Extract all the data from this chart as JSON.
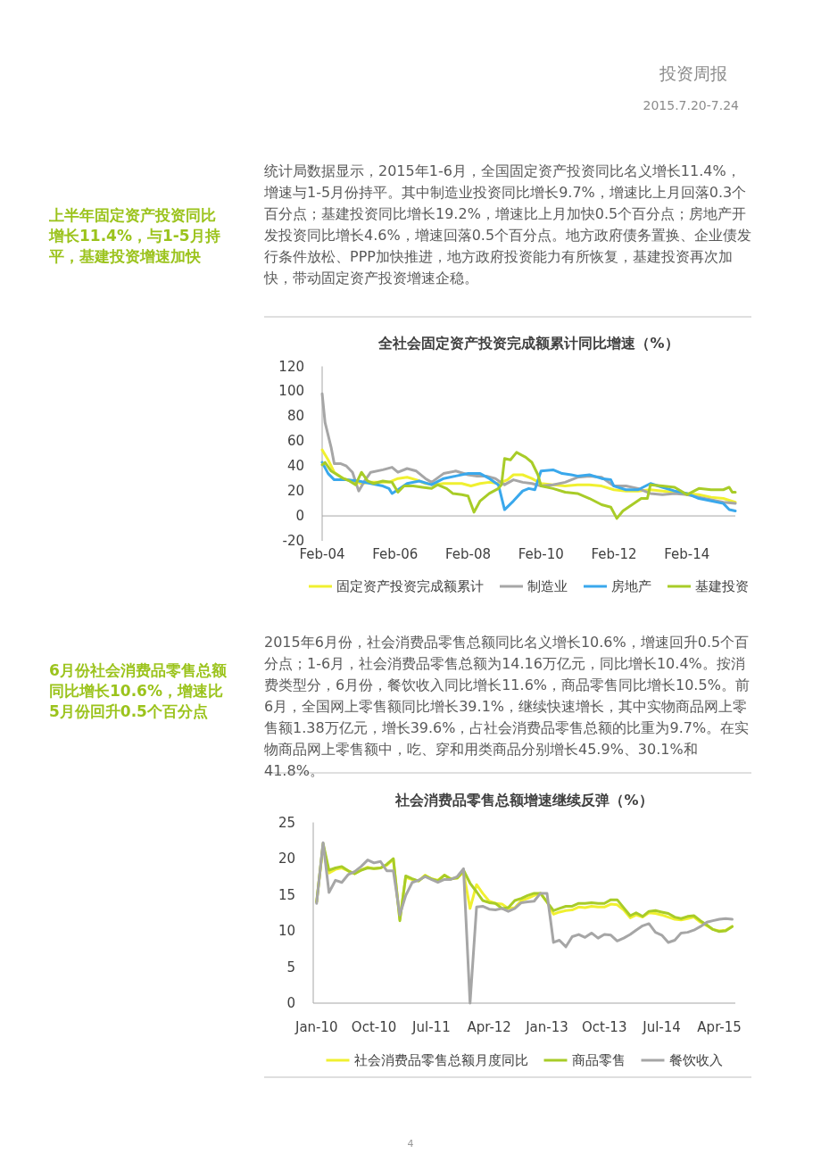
{
  "chart_data": [
    {
      "type": "line",
      "title": "全社会固定资产投资完成额累计同比增速（%）",
      "annotations": [
        "投资周报",
        "2015.7.20-7.24",
        "上半年固定资产投资同比增长11.4%，与1-5月持平，基建投资增速加快",
        "统计局数据显示，2015年1-6月，全国固定资产投资同比名义增长11.4%，增速与1-5月份持平。其中制造业投资同比增长9.7%，增速比上月回落0.3个百分点；基建投资同比增长19.2%，增速比上月加快0.5个百分点；房地产开发投资同比增长4.6%，增速回落0.5个百分点。地方政府债务置换、企业债发行条件放松、PPP加快推进，地方政府投资能力有所恢复，基建投资再次加快，带动固定资产投资增速企稳。"
      ],
      "xlim": [
        "2004-02",
        "2015-06"
      ],
      "xticks": [
        {
          "value": "2004-02",
          "label": "Feb-04"
        },
        {
          "value": "2006-02",
          "label": "Feb-06"
        },
        {
          "value": "2008-02",
          "label": "Feb-08"
        },
        {
          "value": "2010-02",
          "label": "Feb-10"
        },
        {
          "value": "2012-02",
          "label": "Feb-12"
        },
        {
          "value": "2014-02",
          "label": "Feb-14"
        }
      ],
      "ylim": [
        -20,
        120
      ],
      "yticks": [
        -20,
        0,
        20,
        40,
        60,
        80,
        100,
        120
      ],
      "legend": "bottom",
      "series": [
        {
          "name": "固定资产投资完成额累计",
          "color": "#f0f030",
          "x": [
            "2004-02",
            "2004-04",
            "2004-06",
            "2004-09",
            "2004-12",
            "2005-03",
            "2005-06",
            "2005-09",
            "2005-12",
            "2006-03",
            "2006-06",
            "2006-09",
            "2006-12",
            "2007-03",
            "2007-06",
            "2007-09",
            "2007-12",
            "2008-03",
            "2008-06",
            "2008-09",
            "2008-12",
            "2009-03",
            "2009-05",
            "2009-08",
            "2009-11",
            "2010-02",
            "2010-06",
            "2010-10",
            "2011-02",
            "2011-06",
            "2011-10",
            "2012-02",
            "2012-06",
            "2012-10",
            "2013-02",
            "2013-06",
            "2013-10",
            "2014-02",
            "2014-06",
            "2014-10",
            "2015-02",
            "2015-06"
          ],
          "values": [
            53,
            45,
            35,
            30,
            28,
            26,
            27,
            27,
            27,
            30,
            31,
            29,
            26,
            25,
            26,
            26,
            26,
            24,
            26,
            27,
            26,
            29,
            33,
            33,
            30,
            26,
            25,
            24,
            25,
            25,
            24,
            21,
            20,
            20,
            21,
            20,
            19,
            18,
            17,
            15,
            14,
            11
          ]
        },
        {
          "name": "制造业",
          "color": "#a6a6a6",
          "x": [
            "2004-02",
            "2004-03",
            "2004-05",
            "2004-06",
            "2004-08",
            "2004-10",
            "2004-12",
            "2005-02",
            "2005-04",
            "2005-06",
            "2005-10",
            "2006-01",
            "2006-03",
            "2006-06",
            "2006-09",
            "2006-12",
            "2007-02",
            "2007-06",
            "2007-10",
            "2008-02",
            "2008-05",
            "2008-08",
            "2008-11",
            "2009-02",
            "2009-05",
            "2009-08",
            "2009-11",
            "2010-02",
            "2010-06",
            "2010-10",
            "2011-02",
            "2011-06",
            "2011-10",
            "2012-02",
            "2012-06",
            "2012-10",
            "2013-02",
            "2013-06",
            "2013-10",
            "2014-02",
            "2014-06",
            "2014-10",
            "2015-02",
            "2015-06"
          ],
          "values": [
            98,
            75,
            55,
            42,
            42,
            40,
            35,
            20,
            28,
            35,
            37,
            39,
            35,
            38,
            36,
            30,
            27,
            34,
            36,
            33,
            32,
            32,
            30,
            25,
            29,
            27,
            26,
            24,
            25,
            27,
            31,
            32,
            31,
            24,
            24,
            22,
            18,
            17,
            18,
            17,
            15,
            13,
            11,
            10
          ]
        },
        {
          "name": "房地产",
          "color": "#3aa8ec",
          "x": [
            "2004-02",
            "2004-04",
            "2004-06",
            "2004-10",
            "2005-02",
            "2005-06",
            "2005-10",
            "2005-12",
            "2006-01",
            "2006-03",
            "2006-06",
            "2006-10",
            "2007-02",
            "2007-06",
            "2007-10",
            "2008-02",
            "2008-06",
            "2008-09",
            "2008-12",
            "2009-02",
            "2009-05",
            "2009-08",
            "2009-10",
            "2009-12",
            "2010-02",
            "2010-06",
            "2010-09",
            "2010-12",
            "2011-02",
            "2011-06",
            "2011-10",
            "2012-01",
            "2012-02",
            "2012-06",
            "2012-10",
            "2013-02",
            "2013-06",
            "2013-10",
            "2014-02",
            "2014-06",
            "2014-10",
            "2015-02",
            "2015-04",
            "2015-06"
          ],
          "values": [
            43,
            34,
            29,
            29,
            28,
            26,
            24,
            22,
            18,
            21,
            26,
            28,
            25,
            30,
            32,
            34,
            34,
            30,
            25,
            5,
            12,
            20,
            22,
            21,
            36,
            37,
            34,
            33,
            32,
            33,
            30,
            29,
            24,
            21,
            21,
            26,
            23,
            20,
            18,
            14,
            12,
            10,
            5,
            4
          ]
        },
        {
          "name": "基建投资",
          "color": "#a8cc28",
          "x": [
            "2004-02",
            "2004-03",
            "2004-05",
            "2004-07",
            "2004-09",
            "2004-11",
            "2005-01",
            "2005-03",
            "2005-05",
            "2005-07",
            "2005-10",
            "2006-01",
            "2006-03",
            "2006-05",
            "2006-08",
            "2006-11",
            "2007-02",
            "2007-04",
            "2007-07",
            "2007-09",
            "2007-12",
            "2008-02",
            "2008-04",
            "2008-06",
            "2008-09",
            "2008-12",
            "2009-01",
            "2009-02",
            "2009-04",
            "2009-06",
            "2009-09",
            "2009-11",
            "2010-01",
            "2010-02",
            "2010-06",
            "2010-10",
            "2011-02",
            "2011-06",
            "2011-10",
            "2012-01",
            "2012-03",
            "2012-05",
            "2012-08",
            "2012-11",
            "2013-01",
            "2013-02",
            "2013-06",
            "2013-10",
            "2014-02",
            "2014-06",
            "2014-10",
            "2015-02",
            "2015-04",
            "2015-05",
            "2015-06"
          ],
          "values": [
            41,
            43,
            36,
            33,
            30,
            28,
            25,
            35,
            28,
            26,
            28,
            27,
            19,
            24,
            24,
            23,
            22,
            25,
            22,
            18,
            17,
            16,
            3,
            12,
            18,
            22,
            25,
            46,
            45,
            51,
            47,
            43,
            33,
            24,
            22,
            19,
            18,
            14,
            9,
            7,
            -2,
            4,
            9,
            14,
            14,
            25,
            24,
            23,
            17,
            22,
            21,
            21,
            23,
            19,
            19
          ]
        }
      ]
    },
    {
      "type": "line",
      "title": "社会消费品零售总额增速继续反弹（%）",
      "annotations": [
        "6月份社会消费品零售总额同比增长10.6%，增速比5月份回升0.5个百分点",
        "2015年6月份，社会消费品零售总额同比名义增长10.6%，增速回升0.5个百分点；1-6月，社会消费品零售总额为14.16万亿元，同比增长10.4%。按消费类型分，6月份，餐饮收入同比增长11.6%，商品零售同比增长10.5%。前6月，全国网上零售额同比增长39.1%，继续快速增长，其中实物商品网上零售额1.38万亿元，增长39.6%，占社会消费品零售总额的比重为9.7%。在实物商品网上零售额中，吃、穿和用类商品分别增长45.9%、30.1%和41.8%。",
        "4"
      ],
      "x": [
        "2010-01",
        "2010-02",
        "2010-03",
        "2010-04",
        "2010-05",
        "2010-06",
        "2010-07",
        "2010-08",
        "2010-09",
        "2010-10",
        "2010-11",
        "2010-12",
        "2011-01",
        "2011-02",
        "2011-03",
        "2011-04",
        "2011-05",
        "2011-06",
        "2011-07",
        "2011-08",
        "2011-09",
        "2011-10",
        "2011-11",
        "2011-12",
        "2012-01",
        "2012-02",
        "2012-03",
        "2012-04",
        "2012-05",
        "2012-06",
        "2012-07",
        "2012-08",
        "2012-09",
        "2012-10",
        "2012-11",
        "2012-12",
        "2013-01",
        "2013-02",
        "2013-03",
        "2013-04",
        "2013-05",
        "2013-06",
        "2013-07",
        "2013-08",
        "2013-09",
        "2013-10",
        "2013-11",
        "2013-12",
        "2014-01",
        "2014-02",
        "2014-03",
        "2014-04",
        "2014-05",
        "2014-06",
        "2014-07",
        "2014-08",
        "2014-09",
        "2014-10",
        "2014-11",
        "2014-12",
        "2015-01",
        "2015-02",
        "2015-03",
        "2015-04",
        "2015-05",
        "2015-06"
      ],
      "xlim": [
        "2009-12-16",
        "2015-06-16"
      ],
      "xticks": [
        {
          "value": "2010-01",
          "label": "Jan-10"
        },
        {
          "value": "2010-10",
          "label": "Oct-10"
        },
        {
          "value": "2011-07",
          "label": "Jul-11"
        },
        {
          "value": "2012-04",
          "label": "Apr-12"
        },
        {
          "value": "2013-01",
          "label": "Jan-13"
        },
        {
          "value": "2013-10",
          "label": "Oct-13"
        },
        {
          "value": "2014-07",
          "label": "Jul-14"
        },
        {
          "value": "2015-04",
          "label": "Apr-15"
        }
      ],
      "ylim": [
        0,
        25
      ],
      "yticks": [
        0,
        5,
        10,
        15,
        20,
        25
      ],
      "legend": "bottom",
      "series": [
        {
          "name": "社会消费品零售总额月度同比",
          "color": "#f0f030",
          "values": [
            14.0,
            21.8,
            18.0,
            18.5,
            18.7,
            18.3,
            17.9,
            18.4,
            18.8,
            18.6,
            18.7,
            19.1,
            19.9,
            11.6,
            17.4,
            17.1,
            16.9,
            17.7,
            17.2,
            17.0,
            17.7,
            17.2,
            17.3,
            18.1,
            13.1,
            16.4,
            15.2,
            14.1,
            13.8,
            13.7,
            13.1,
            13.2,
            14.2,
            14.5,
            14.9,
            15.2,
            14.0,
            12.3,
            12.6,
            12.8,
            12.9,
            13.3,
            13.2,
            13.4,
            13.3,
            13.3,
            13.7,
            13.6,
            12.9,
            11.8,
            12.2,
            11.9,
            12.5,
            12.4,
            12.2,
            11.9,
            11.6,
            11.5,
            11.7,
            11.9,
            11.2,
            10.7,
            10.2,
            10.0,
            10.1,
            10.6
          ]
        },
        {
          "name": "商品零售",
          "color": "#a8cc28",
          "values": [
            14.0,
            22.1,
            18.4,
            18.7,
            18.9,
            18.3,
            17.9,
            18.4,
            18.7,
            18.6,
            18.7,
            19.2,
            20.0,
            11.4,
            17.6,
            17.2,
            16.9,
            17.6,
            17.2,
            16.9,
            17.7,
            17.2,
            17.3,
            18.4,
            16.6,
            15.4,
            14.2,
            13.9,
            13.8,
            13.1,
            13.2,
            14.2,
            14.5,
            14.9,
            15.2,
            15.2,
            14.0,
            12.8,
            13.1,
            13.4,
            13.4,
            13.8,
            13.8,
            13.9,
            13.8,
            13.8,
            14.3,
            14.3,
            13.2,
            12.1,
            12.5,
            12.0,
            12.7,
            12.8,
            12.6,
            12.4,
            11.9,
            11.7,
            12.0,
            12.1,
            11.4,
            10.8,
            10.2,
            9.9,
            10.0,
            10.6
          ]
        },
        {
          "name": "餐饮收入",
          "color": "#a6a6a6",
          "values": [
            13.8,
            22.2,
            15.3,
            17.0,
            16.7,
            17.8,
            18.2,
            18.9,
            19.8,
            19.4,
            19.6,
            18.3,
            18.3,
            12.2,
            14.9,
            16.7,
            17.0,
            17.5,
            17.1,
            16.7,
            17.1,
            17.1,
            17.5,
            18.6,
            0,
            13.3,
            13.4,
            13.0,
            12.9,
            13.1,
            12.7,
            13.1,
            13.9,
            14.0,
            14.1,
            15.2,
            15.2,
            8.4,
            8.7,
            7.8,
            9.2,
            9.5,
            9.1,
            9.7,
            9.0,
            9.5,
            9.4,
            8.6,
            9.0,
            9.5,
            10.1,
            10.7,
            11.0,
            9.8,
            9.4,
            8.4,
            8.7,
            9.7,
            9.8,
            10.1,
            10.6,
            11.2,
            11.4,
            11.6,
            11.7,
            11.6
          ]
        }
      ]
    }
  ]
}
